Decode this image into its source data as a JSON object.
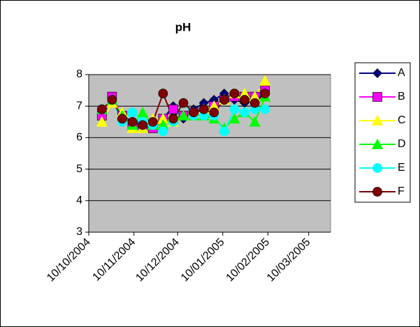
{
  "chart_data": {
    "type": "line",
    "title": "pH",
    "x": [
      "2004-10-19",
      "2004-10-26",
      "2004-11-02",
      "2004-11-09",
      "2004-11-16",
      "2004-11-23",
      "2004-11-30",
      "2004-12-07",
      "2004-12-14",
      "2004-12-21",
      "2004-12-28",
      "2005-01-04",
      "2005-01-11",
      "2005-01-18",
      "2005-01-25",
      "2005-02-01",
      "2005-02-08"
    ],
    "xlim": [
      "2004-10-10",
      "2005-03-25"
    ],
    "xticks": [
      {
        "value": "2004-10-10",
        "label": "10/10/2004"
      },
      {
        "value": "2004-11-10",
        "label": "10/11/2004"
      },
      {
        "value": "2004-12-10",
        "label": "10/12/2004"
      },
      {
        "value": "2005-01-10",
        "label": "10/01/2005"
      },
      {
        "value": "2005-02-10",
        "label": "10/02/2005"
      },
      {
        "value": "2005-03-10",
        "label": "10/03/2005"
      }
    ],
    "ylim": [
      3,
      8
    ],
    "yticks": [
      3,
      4,
      5,
      6,
      7,
      8
    ],
    "grid": true,
    "plot_background": "#c0c0c0",
    "legend": "right",
    "series": [
      {
        "name": "A",
        "color": "#000080",
        "marker": "diamond",
        "values": [
          6.7,
          7.2,
          6.7,
          6.5,
          6.5,
          6.4,
          6.6,
          7.0,
          6.6,
          6.9,
          7.1,
          7.2,
          7.4,
          7.2,
          7.1,
          7.2,
          7.4
        ]
      },
      {
        "name": "B",
        "color": "#ff00ff",
        "marker": "square",
        "values": [
          6.7,
          7.3,
          6.7,
          6.4,
          6.4,
          6.3,
          6.6,
          6.9,
          6.7,
          6.8,
          6.8,
          7.0,
          7.2,
          7.3,
          7.3,
          7.3,
          7.5
        ]
      },
      {
        "name": "C",
        "color": "#ffff00",
        "marker": "triangle",
        "values": [
          6.5,
          7.1,
          6.8,
          6.3,
          6.3,
          6.6,
          6.6,
          6.5,
          6.7,
          6.8,
          6.9,
          7.0,
          7.2,
          7.4,
          7.4,
          7.3,
          7.8
        ]
      },
      {
        "name": "D",
        "color": "#00ff00",
        "marker": "triangle",
        "values": [
          6.9,
          7.2,
          6.7,
          6.4,
          6.8,
          6.4,
          6.4,
          6.6,
          6.7,
          6.7,
          6.7,
          6.6,
          6.3,
          6.6,
          6.8,
          6.5,
          7.3
        ]
      },
      {
        "name": "E",
        "color": "#00ffff",
        "marker": "circle",
        "values": [
          6.9,
          7.2,
          6.5,
          6.8,
          6.5,
          6.4,
          6.2,
          6.5,
          7.1,
          6.7,
          6.7,
          6.7,
          6.2,
          6.9,
          6.8,
          6.9,
          6.9
        ]
      },
      {
        "name": "F",
        "color": "#800000",
        "marker": "circle",
        "values": [
          6.9,
          7.2,
          6.6,
          6.5,
          6.4,
          6.5,
          7.4,
          6.6,
          7.1,
          6.8,
          6.9,
          6.8,
          7.2,
          7.4,
          7.2,
          7.1,
          7.4
        ]
      }
    ]
  }
}
